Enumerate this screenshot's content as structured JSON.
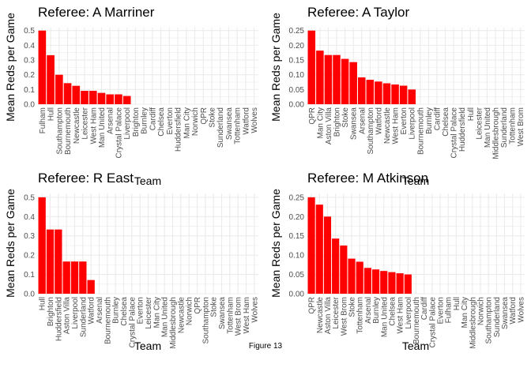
{
  "caption": "Figure 13",
  "chart_data": [
    {
      "type": "bar",
      "title": "Referee: A Marriner",
      "xlabel": "Team",
      "ylabel": "Mean Reds per Game",
      "ylim": [
        0,
        0.52
      ],
      "yticks": [
        0.0,
        0.1,
        0.2,
        0.3,
        0.4,
        0.5
      ],
      "yticklabels": [
        "0.0",
        "0.1",
        "0.2",
        "0.3",
        "0.4",
        "0.5"
      ],
      "bar_color": "#ff0000",
      "categories": [
        "Fulham",
        "Hull",
        "Southampton",
        "Bournemouth",
        "Newcastle",
        "Leicester",
        "West Ham",
        "Man United",
        "Arsenal",
        "Crystal Palace",
        "Liverpool",
        "Brighton",
        "Burnley",
        "Cardiff",
        "Chelsea",
        "Everton",
        "Huddersfield",
        "Man City",
        "Norwich",
        "QPR",
        "Stoke",
        "Sunderland",
        "Swansea",
        "Tottenham",
        "Watford",
        "Wolves"
      ],
      "values": [
        0.5,
        0.333,
        0.2,
        0.143,
        0.125,
        0.091,
        0.091,
        0.077,
        0.067,
        0.067,
        0.056,
        0,
        0,
        0,
        0,
        0,
        0,
        0,
        0,
        0,
        0,
        0,
        0,
        0,
        0,
        0
      ]
    },
    {
      "type": "bar",
      "title": "Referee: A Taylor",
      "xlabel": "Team",
      "ylabel": "Mean Reds per Game",
      "ylim": [
        0,
        0.26
      ],
      "yticks": [
        0.0,
        0.05,
        0.1,
        0.15,
        0.2,
        0.25
      ],
      "yticklabels": [
        "0.00",
        "0.05",
        "0.10",
        "0.15",
        "0.20",
        "0.25"
      ],
      "bar_color": "#ff0000",
      "categories": [
        "QPR",
        "Man City",
        "Aston Villa",
        "Brighton",
        "Stoke",
        "Swansea",
        "Arsenal",
        "Southampton",
        "Watford",
        "Newcastle",
        "West Ham",
        "Everton",
        "Liverpool",
        "Bournemouth",
        "Burnley",
        "Cardiff",
        "Chelsea",
        "Crystal Palace",
        "Huddersfield",
        "Hull",
        "Leicester",
        "Man United",
        "Middlesbrough",
        "Sunderland",
        "Tottenham",
        "West Brom"
      ],
      "values": [
        0.25,
        0.182,
        0.167,
        0.167,
        0.154,
        0.143,
        0.091,
        0.083,
        0.077,
        0.071,
        0.067,
        0.063,
        0.05,
        0,
        0,
        0,
        0,
        0,
        0,
        0,
        0,
        0,
        0,
        0,
        0,
        0
      ]
    },
    {
      "type": "bar",
      "title": "Referee: R East",
      "xlabel": "Team",
      "ylabel": "Mean Reds per Game",
      "ylim": [
        0,
        0.52
      ],
      "yticks": [
        0.0,
        0.1,
        0.2,
        0.3,
        0.4,
        0.5
      ],
      "yticklabels": [
        "0.0",
        "0.1",
        "0.2",
        "0.3",
        "0.4",
        "0.5"
      ],
      "bar_color": "#ff0000",
      "categories": [
        "Hull",
        "Brighton",
        "Huddersfield",
        "Aston Villa",
        "Liverpool",
        "Sunderland",
        "Watford",
        "Arsenal",
        "Bournemouth",
        "Burnley",
        "Chelsea",
        "Crystal Palace",
        "Everton",
        "Leicester",
        "Man City",
        "Man United",
        "Middlesbrough",
        "Newcastle",
        "Norwich",
        "QPR",
        "Southampton",
        "Stoke",
        "Swansea",
        "Tottenham",
        "West Brom",
        "West Ham",
        "Wolves"
      ],
      "values": [
        0.5,
        0.333,
        0.333,
        0.167,
        0.167,
        0.167,
        0.071,
        0,
        0,
        0,
        0,
        0,
        0,
        0,
        0,
        0,
        0,
        0,
        0,
        0,
        0,
        0,
        0,
        0,
        0,
        0,
        0
      ]
    },
    {
      "type": "bar",
      "title": "Referee: M Atkinson",
      "xlabel": "Team",
      "ylabel": "Mean Reds per Game",
      "ylim": [
        0,
        0.26
      ],
      "yticks": [
        0.0,
        0.05,
        0.1,
        0.15,
        0.2,
        0.25
      ],
      "yticklabels": [
        "0.00",
        "0.05",
        "0.10",
        "0.15",
        "0.20",
        "0.25"
      ],
      "bar_color": "#ff0000",
      "categories": [
        "QPR",
        "Newcastle",
        "Aston Villa",
        "Leicester",
        "West Brom",
        "Stoke",
        "Tottenham",
        "Arsenal",
        "Burnley",
        "Man United",
        "Chelsea",
        "West Ham",
        "Liverpool",
        "Bournemouth",
        "Cardiff",
        "Crystal Palace",
        "Everton",
        "Fulham",
        "Hull",
        "Man City",
        "Middlesbrough",
        "Norwich",
        "Southampton",
        "Sunderland",
        "Swansea",
        "Watford",
        "Wolves"
      ],
      "values": [
        0.25,
        0.231,
        0.2,
        0.143,
        0.125,
        0.091,
        0.083,
        0.067,
        0.063,
        0.059,
        0.056,
        0.053,
        0.05,
        0,
        0,
        0,
        0,
        0,
        0,
        0,
        0,
        0,
        0,
        0,
        0,
        0,
        0
      ]
    }
  ]
}
